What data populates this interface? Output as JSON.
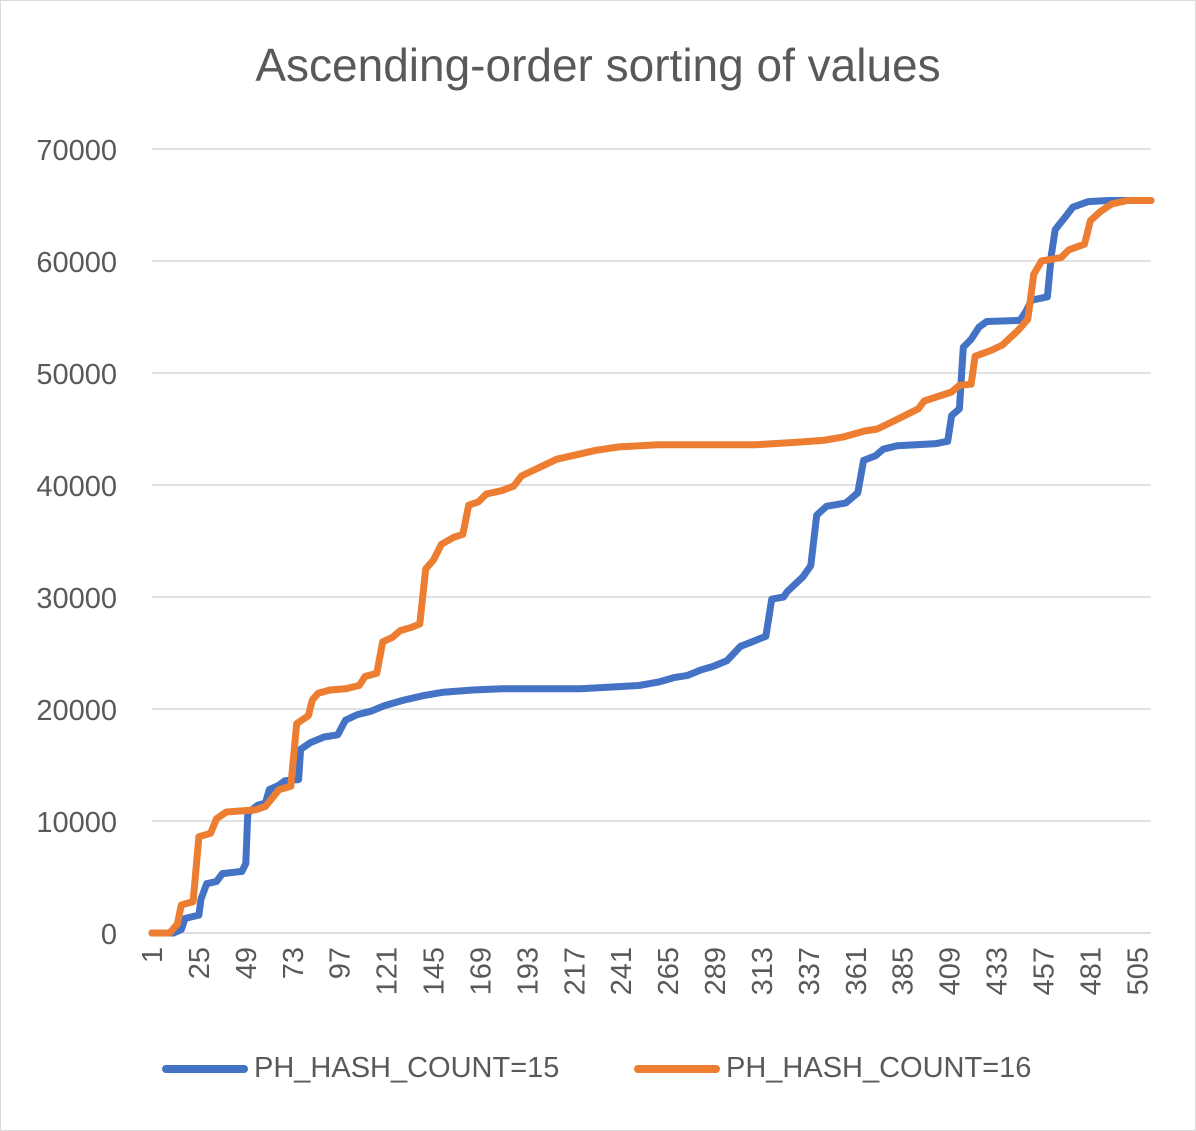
{
  "chart_data": {
    "type": "line",
    "title": "Ascending-order sorting of values",
    "xlabel": "",
    "ylabel": "",
    "x_range": [
      1,
      512
    ],
    "ylim": [
      0,
      70000
    ],
    "y_ticks": [
      "0",
      "10000",
      "20000",
      "30000",
      "40000",
      "50000",
      "60000",
      "70000"
    ],
    "x_ticks": [
      "1",
      "25",
      "49",
      "73",
      "97",
      "121",
      "145",
      "169",
      "193",
      "217",
      "241",
      "265",
      "289",
      "313",
      "337",
      "361",
      "385",
      "409",
      "433",
      "457",
      "481",
      "505"
    ],
    "grid": true,
    "legend_position": "bottom",
    "series": [
      {
        "name": "PH_HASH_COUNT=15",
        "color": "#4472c4",
        "points": [
          [
            1,
            0
          ],
          [
            12,
            0
          ],
          [
            16,
            300
          ],
          [
            18,
            1300
          ],
          [
            25,
            1600
          ],
          [
            26,
            3000
          ],
          [
            29,
            4400
          ],
          [
            34,
            4600
          ],
          [
            37,
            5300
          ],
          [
            47,
            5500
          ],
          [
            49,
            6200
          ],
          [
            50,
            10700
          ],
          [
            55,
            11400
          ],
          [
            59,
            11600
          ],
          [
            61,
            12800
          ],
          [
            66,
            13200
          ],
          [
            69,
            13600
          ],
          [
            76,
            13700
          ],
          [
            77,
            16400
          ],
          [
            82,
            17000
          ],
          [
            89,
            17500
          ],
          [
            96,
            17700
          ],
          [
            100,
            19000
          ],
          [
            106,
            19500
          ],
          [
            113,
            19800
          ],
          [
            120,
            20300
          ],
          [
            130,
            20800
          ],
          [
            140,
            21200
          ],
          [
            150,
            21500
          ],
          [
            165,
            21700
          ],
          [
            180,
            21800
          ],
          [
            220,
            21800
          ],
          [
            240,
            22000
          ],
          [
            250,
            22100
          ],
          [
            260,
            22400
          ],
          [
            268,
            22800
          ],
          [
            275,
            23000
          ],
          [
            282,
            23500
          ],
          [
            288,
            23800
          ],
          [
            295,
            24300
          ],
          [
            302,
            25600
          ],
          [
            308,
            26000
          ],
          [
            315,
            26500
          ],
          [
            318,
            29800
          ],
          [
            324,
            30000
          ],
          [
            326,
            30500
          ],
          [
            334,
            31800
          ],
          [
            338,
            32800
          ],
          [
            341,
            37300
          ],
          [
            346,
            38100
          ],
          [
            356,
            38400
          ],
          [
            362,
            39300
          ],
          [
            365,
            42200
          ],
          [
            371,
            42600
          ],
          [
            375,
            43200
          ],
          [
            382,
            43500
          ],
          [
            392,
            43600
          ],
          [
            402,
            43700
          ],
          [
            408,
            43900
          ],
          [
            410,
            46200
          ],
          [
            414,
            46800
          ],
          [
            416,
            52300
          ],
          [
            420,
            53000
          ],
          [
            424,
            54100
          ],
          [
            428,
            54600
          ],
          [
            445,
            54700
          ],
          [
            448,
            55500
          ],
          [
            451,
            56500
          ],
          [
            459,
            56800
          ],
          [
            461,
            60500
          ],
          [
            463,
            62800
          ],
          [
            468,
            63900
          ],
          [
            472,
            64800
          ],
          [
            480,
            65300
          ],
          [
            490,
            65400
          ],
          [
            512,
            65400
          ]
        ]
      },
      {
        "name": "PH_HASH_COUNT=16",
        "color": "#ed7d31",
        "points": [
          [
            1,
            0
          ],
          [
            10,
            0
          ],
          [
            14,
            800
          ],
          [
            16,
            2500
          ],
          [
            22,
            2800
          ],
          [
            25,
            8600
          ],
          [
            31,
            8900
          ],
          [
            34,
            10200
          ],
          [
            39,
            10800
          ],
          [
            47,
            10900
          ],
          [
            54,
            11000
          ],
          [
            59,
            11300
          ],
          [
            66,
            12800
          ],
          [
            72,
            13100
          ],
          [
            75,
            18700
          ],
          [
            81,
            19400
          ],
          [
            83,
            20800
          ],
          [
            86,
            21400
          ],
          [
            92,
            21700
          ],
          [
            100,
            21800
          ],
          [
            107,
            22100
          ],
          [
            110,
            22900
          ],
          [
            116,
            23200
          ],
          [
            119,
            26000
          ],
          [
            124,
            26400
          ],
          [
            128,
            27000
          ],
          [
            134,
            27300
          ],
          [
            138,
            27600
          ],
          [
            141,
            32500
          ],
          [
            145,
            33300
          ],
          [
            149,
            34700
          ],
          [
            155,
            35300
          ],
          [
            160,
            35600
          ],
          [
            163,
            38200
          ],
          [
            168,
            38500
          ],
          [
            172,
            39200
          ],
          [
            180,
            39500
          ],
          [
            186,
            39900
          ],
          [
            190,
            40800
          ],
          [
            196,
            41300
          ],
          [
            202,
            41800
          ],
          [
            208,
            42300
          ],
          [
            218,
            42700
          ],
          [
            228,
            43100
          ],
          [
            240,
            43400
          ],
          [
            260,
            43600
          ],
          [
            310,
            43600
          ],
          [
            330,
            43800
          ],
          [
            345,
            44000
          ],
          [
            355,
            44300
          ],
          [
            365,
            44800
          ],
          [
            372,
            45000
          ],
          [
            378,
            45500
          ],
          [
            386,
            46200
          ],
          [
            393,
            46800
          ],
          [
            396,
            47500
          ],
          [
            403,
            47900
          ],
          [
            410,
            48300
          ],
          [
            414,
            48900
          ],
          [
            420,
            49000
          ],
          [
            422,
            51500
          ],
          [
            430,
            52000
          ],
          [
            436,
            52500
          ],
          [
            444,
            53800
          ],
          [
            449,
            54800
          ],
          [
            452,
            58800
          ],
          [
            456,
            60000
          ],
          [
            466,
            60300
          ],
          [
            470,
            61000
          ],
          [
            478,
            61500
          ],
          [
            481,
            63600
          ],
          [
            486,
            64400
          ],
          [
            492,
            65100
          ],
          [
            500,
            65400
          ],
          [
            512,
            65400
          ]
        ]
      }
    ]
  }
}
